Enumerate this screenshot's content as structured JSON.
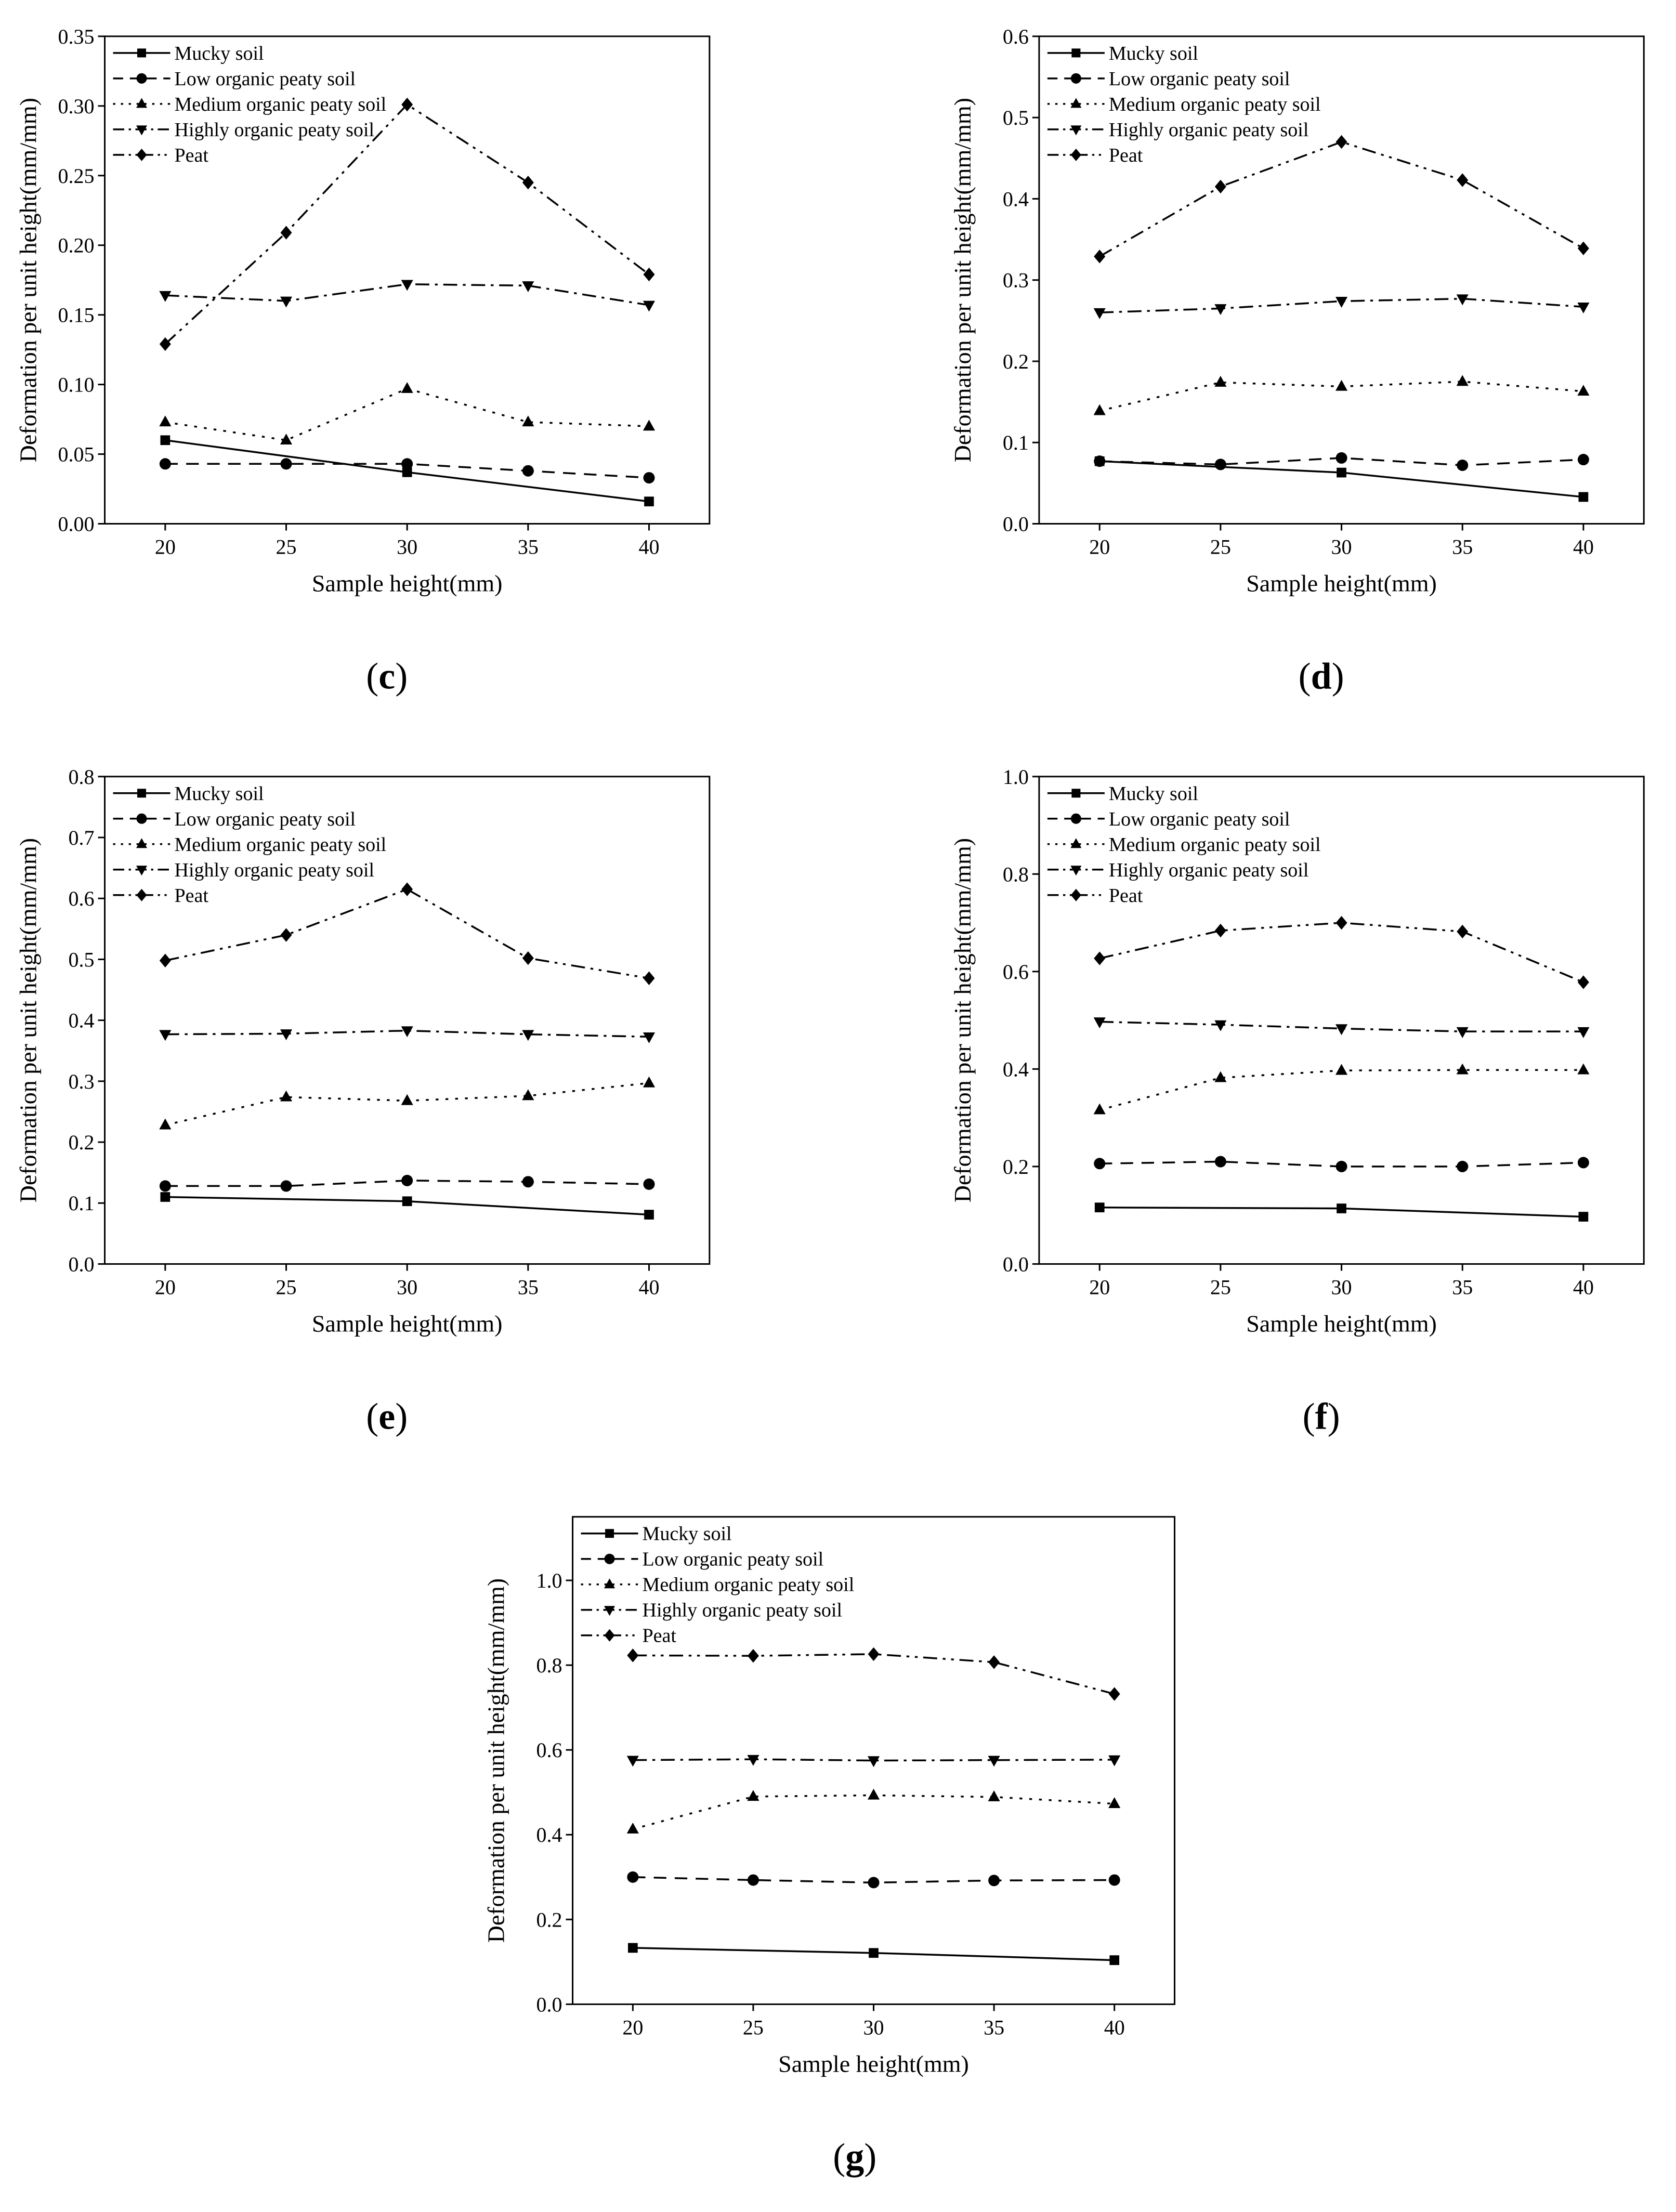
{
  "figure": {
    "panels_shown": [
      "c",
      "d",
      "e",
      "f",
      "g"
    ]
  },
  "colors": {
    "series": "#000000",
    "background": "#ffffff"
  },
  "chart_data": [
    {
      "type": "line",
      "label": "c",
      "xlabel": "Sample height(mm)",
      "ylabel": "Deformation per unit height(mm/mm)",
      "x": [
        20,
        25,
        30,
        35,
        40
      ],
      "xlim": [
        17.5,
        42.5
      ],
      "ylim": [
        0,
        0.35
      ],
      "yticks": [
        0,
        0.05,
        0.1,
        0.15,
        0.2,
        0.25,
        0.3,
        0.35
      ],
      "ytick_labels": [
        "0.00",
        "0.05",
        "0.10",
        "0.15",
        "0.20",
        "0.25",
        "0.30",
        "0.35"
      ],
      "xtick_labels": [
        "20",
        "25",
        "30",
        "35",
        "40"
      ],
      "legend": "top-left",
      "series": [
        {
          "name": "Mucky soil",
          "marker": "square",
          "dash": "solid",
          "values": [
            0.06,
            null,
            0.037,
            null,
            0.016
          ]
        },
        {
          "name": "Low organic peaty soil",
          "marker": "circle",
          "dash": "dash",
          "values": [
            0.043,
            0.043,
            0.043,
            0.038,
            0.033
          ]
        },
        {
          "name": "Medium organic peaty soil",
          "marker": "triangle-up",
          "dash": "dot",
          "values": [
            0.073,
            0.06,
            0.097,
            0.073,
            0.07
          ]
        },
        {
          "name": "Highly organic peaty soil",
          "marker": "triangle-down",
          "dash": "dashdot",
          "values": [
            0.164,
            0.16,
            0.172,
            0.171,
            0.157
          ]
        },
        {
          "name": "Peat",
          "marker": "diamond",
          "dash": "dashdotdot",
          "values": [
            0.129,
            0.209,
            0.301,
            0.245,
            0.179
          ]
        }
      ]
    },
    {
      "type": "line",
      "label": "d",
      "xlabel": "Sample height(mm)",
      "ylabel": "Deformation per unit height(mm/mm)",
      "x": [
        20,
        25,
        30,
        35,
        40
      ],
      "xlim": [
        17.5,
        42.5
      ],
      "ylim": [
        0,
        0.6
      ],
      "yticks": [
        0,
        0.1,
        0.2,
        0.3,
        0.4,
        0.5,
        0.6
      ],
      "ytick_labels": [
        "0.0",
        "0.1",
        "0.2",
        "0.3",
        "0.4",
        "0.5",
        "0.6"
      ],
      "xtick_labels": [
        "20",
        "25",
        "30",
        "35",
        "40"
      ],
      "legend": "top-left",
      "series": [
        {
          "name": "Mucky soil",
          "marker": "square",
          "dash": "solid",
          "values": [
            0.077,
            null,
            0.063,
            null,
            0.033
          ]
        },
        {
          "name": "Low organic peaty soil",
          "marker": "circle",
          "dash": "dash",
          "values": [
            0.077,
            0.073,
            0.081,
            0.072,
            0.079
          ]
        },
        {
          "name": "Medium organic peaty soil",
          "marker": "triangle-up",
          "dash": "dot",
          "values": [
            0.139,
            0.174,
            0.169,
            0.175,
            0.163
          ]
        },
        {
          "name": "Highly organic peaty soil",
          "marker": "triangle-down",
          "dash": "dashdot",
          "values": [
            0.26,
            0.265,
            0.274,
            0.277,
            0.267
          ]
        },
        {
          "name": "Peat",
          "marker": "diamond",
          "dash": "dashdotdot",
          "values": [
            0.329,
            0.415,
            0.47,
            0.423,
            0.339
          ]
        }
      ]
    },
    {
      "type": "line",
      "label": "e",
      "xlabel": "Sample height(mm)",
      "ylabel": "Deformation per unit height(mm/mm)",
      "x": [
        20,
        25,
        30,
        35,
        40
      ],
      "xlim": [
        17.5,
        42.5
      ],
      "ylim": [
        0,
        0.8
      ],
      "yticks": [
        0,
        0.1,
        0.2,
        0.3,
        0.4,
        0.5,
        0.6,
        0.7,
        0.8
      ],
      "ytick_labels": [
        "0.0",
        "0.1",
        "0.2",
        "0.3",
        "0.4",
        "0.5",
        "0.6",
        "0.7",
        "0.8"
      ],
      "xtick_labels": [
        "20",
        "25",
        "30",
        "35",
        "40"
      ],
      "legend": "top-left",
      "series": [
        {
          "name": "Mucky soil",
          "marker": "square",
          "dash": "solid",
          "values": [
            0.11,
            null,
            0.103,
            null,
            0.081
          ]
        },
        {
          "name": "Low organic peaty soil",
          "marker": "circle",
          "dash": "dash",
          "values": [
            0.128,
            0.128,
            0.137,
            0.135,
            0.131
          ]
        },
        {
          "name": "Medium organic peaty soil",
          "marker": "triangle-up",
          "dash": "dot",
          "values": [
            0.228,
            0.274,
            0.268,
            0.276,
            0.297
          ]
        },
        {
          "name": "Highly organic peaty soil",
          "marker": "triangle-down",
          "dash": "dashdot",
          "values": [
            0.377,
            0.378,
            0.383,
            0.377,
            0.373
          ]
        },
        {
          "name": "Peat",
          "marker": "diamond",
          "dash": "dashdotdot",
          "values": [
            0.498,
            0.54,
            0.615,
            0.502,
            0.469
          ]
        }
      ]
    },
    {
      "type": "line",
      "label": "f",
      "xlabel": "Sample height(mm)",
      "ylabel": "Deformation per unit height(mm/mm)",
      "x": [
        20,
        25,
        30,
        35,
        40
      ],
      "xlim": [
        17.5,
        42.5
      ],
      "ylim": [
        0,
        1.0
      ],
      "yticks": [
        0,
        0.2,
        0.4,
        0.6,
        0.8,
        1.0
      ],
      "ytick_labels": [
        "0.0",
        "0.2",
        "0.4",
        "0.6",
        "0.8",
        "1.0"
      ],
      "xtick_labels": [
        "20",
        "25",
        "30",
        "35",
        "40"
      ],
      "legend": "top-left",
      "series": [
        {
          "name": "Mucky soil",
          "marker": "square",
          "dash": "solid",
          "values": [
            0.116,
            null,
            0.114,
            null,
            0.097
          ]
        },
        {
          "name": "Low organic peaty soil",
          "marker": "circle",
          "dash": "dash",
          "values": [
            0.206,
            0.21,
            0.2,
            0.2,
            0.208
          ]
        },
        {
          "name": "Medium organic peaty soil",
          "marker": "triangle-up",
          "dash": "dot",
          "values": [
            0.316,
            0.382,
            0.397,
            0.398,
            0.398
          ]
        },
        {
          "name": "Highly organic peaty soil",
          "marker": "triangle-down",
          "dash": "dashdot",
          "values": [
            0.497,
            0.491,
            0.483,
            0.477,
            0.477
          ]
        },
        {
          "name": "Peat",
          "marker": "diamond",
          "dash": "dashdotdot",
          "values": [
            0.627,
            0.684,
            0.7,
            0.682,
            0.578
          ]
        }
      ]
    },
    {
      "type": "line",
      "label": "g",
      "xlabel": "Sample height(mm)",
      "ylabel": "Deformation per unit height(mm/mm)",
      "x": [
        20,
        25,
        30,
        35,
        40
      ],
      "xlim": [
        17.5,
        42.5
      ],
      "ylim": [
        0,
        1.15
      ],
      "yticks": [
        0,
        0.2,
        0.4,
        0.6,
        0.8,
        1.0
      ],
      "ytick_labels": [
        "0.0",
        "0.2",
        "0.4",
        "0.6",
        "0.8",
        "1.0"
      ],
      "xtick_labels": [
        "20",
        "25",
        "30",
        "35",
        "40"
      ],
      "legend": "top-left",
      "series": [
        {
          "name": "Mucky soil",
          "marker": "square",
          "dash": "solid",
          "values": [
            0.133,
            null,
            0.121,
            null,
            0.104
          ]
        },
        {
          "name": "Low organic peaty soil",
          "marker": "circle",
          "dash": "dash",
          "values": [
            0.3,
            0.293,
            0.287,
            0.292,
            0.293
          ]
        },
        {
          "name": "Medium organic peaty soil",
          "marker": "triangle-up",
          "dash": "dot",
          "values": [
            0.413,
            0.49,
            0.493,
            0.489,
            0.473
          ]
        },
        {
          "name": "Highly organic peaty soil",
          "marker": "triangle-down",
          "dash": "dashdot",
          "values": [
            0.576,
            0.578,
            0.575,
            0.576,
            0.577
          ]
        },
        {
          "name": "Peat",
          "marker": "diamond",
          "dash": "dashdotdot",
          "values": [
            0.823,
            0.822,
            0.826,
            0.807,
            0.732
          ]
        }
      ]
    }
  ]
}
